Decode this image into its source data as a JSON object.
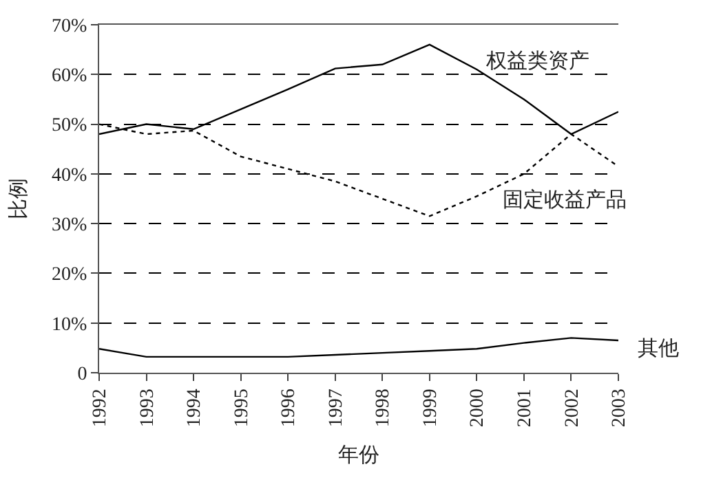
{
  "chart_data": {
    "type": "line",
    "xlabel": "年份",
    "ylabel": "比例",
    "categories": [
      "1992",
      "1993",
      "1994",
      "1995",
      "1996",
      "1997",
      "1998",
      "1999",
      "2000",
      "2001",
      "2002",
      "2003"
    ],
    "series": [
      {
        "name": "权益类资产",
        "color": "#000000",
        "line_style": "solid",
        "values": [
          48,
          50,
          49,
          53,
          57,
          61.2,
          62,
          66,
          61,
          55,
          48,
          52.5
        ]
      },
      {
        "name": "固定收益产品",
        "color": "#000000",
        "line_style": "dotted",
        "values": [
          50,
          48,
          48.7,
          43.5,
          41,
          38.5,
          35,
          31.5,
          35.5,
          40,
          48,
          41.5
        ]
      },
      {
        "name": "其他",
        "color": "#000000",
        "line_style": "solid",
        "values": [
          4.8,
          3.2,
          3.2,
          3.2,
          3.2,
          3.6,
          4,
          4.4,
          4.8,
          6,
          7,
          6.5
        ]
      }
    ],
    "ylim": [
      0,
      70
    ],
    "yticks": [
      {
        "value": 0,
        "label": "0"
      },
      {
        "value": 10,
        "label": "10%"
      },
      {
        "value": 20,
        "label": "20%"
      },
      {
        "value": 30,
        "label": "30%"
      },
      {
        "value": 40,
        "label": "40%"
      },
      {
        "value": 50,
        "label": "50%"
      },
      {
        "value": 60,
        "label": "60%"
      },
      {
        "value": 70,
        "label": "70%"
      }
    ],
    "grid": "y",
    "legend": false,
    "marker": "none"
  }
}
